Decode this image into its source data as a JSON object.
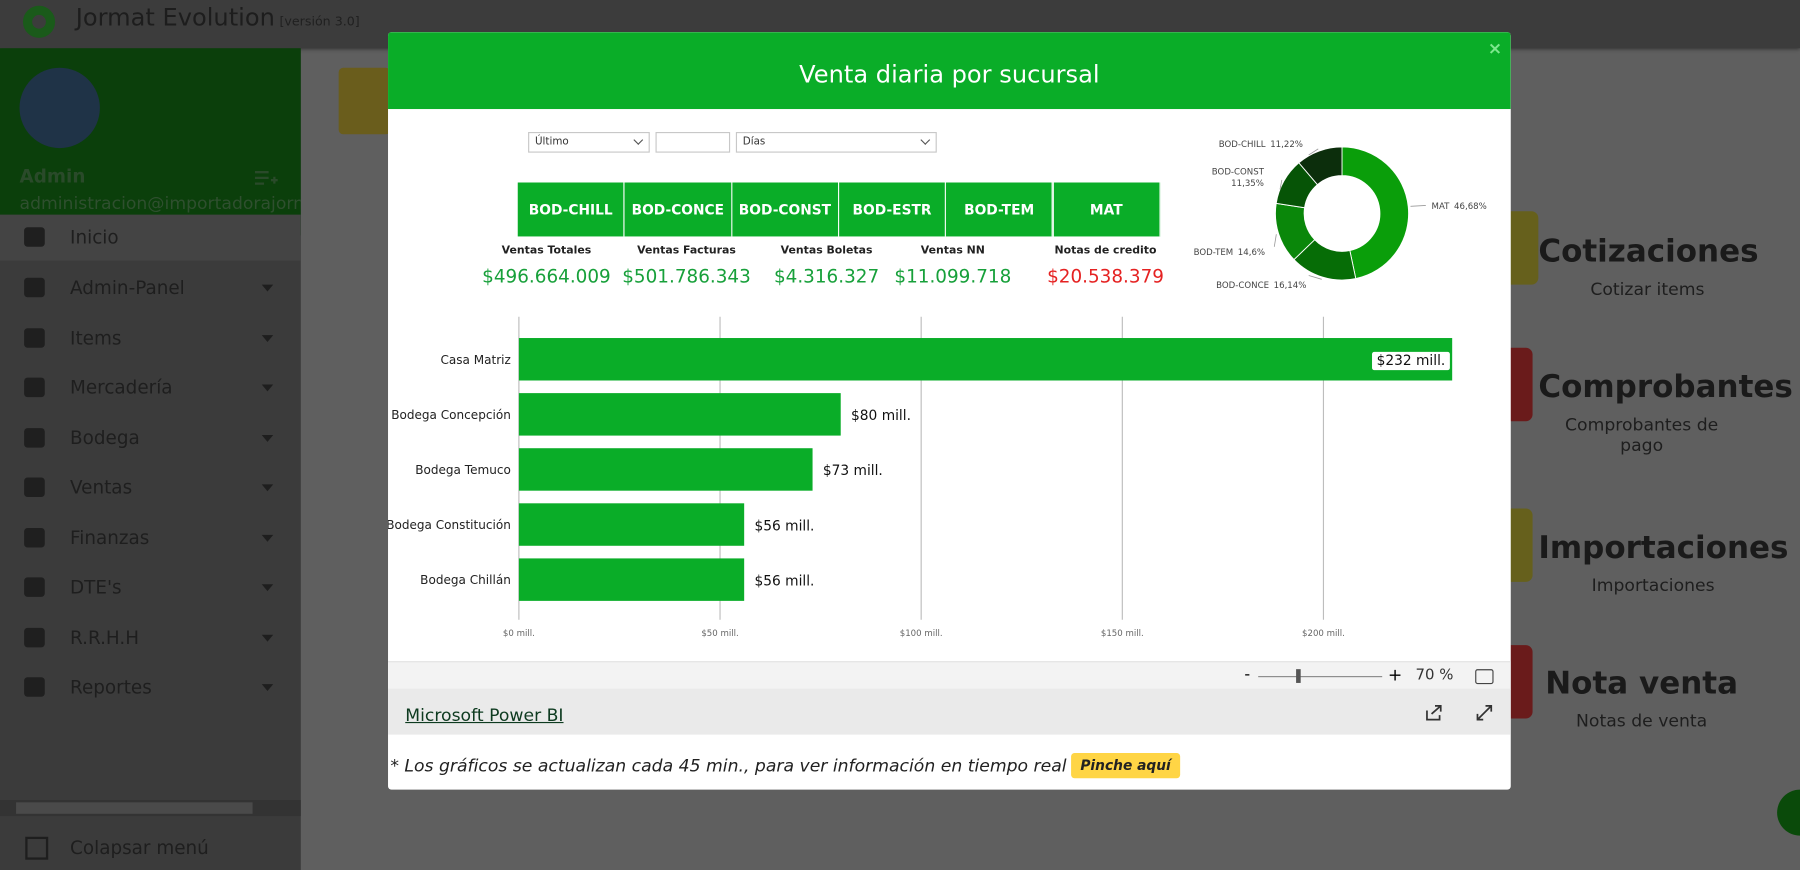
{
  "header": {
    "app_name": "Jormat Evolution",
    "version": "[versión 3.0]"
  },
  "sidebar": {
    "user": "Admin",
    "email": "administracion@importadorajorm",
    "menu": [
      "Inicio",
      "Admin-Panel",
      "Items",
      "Mercadería",
      "Bodega",
      "Ventas",
      "Finanzas",
      "DTE's",
      "R.R.H.H",
      "Reportes"
    ],
    "collapse": "Colapsar menú"
  },
  "cards": [
    {
      "title": "Cotizaciones",
      "subtitle": "Cotizar items"
    },
    {
      "title": "Comprobantes",
      "subtitle": "Comprobantes de pago"
    },
    {
      "title": "Importaciones",
      "subtitle": "Importaciones"
    },
    {
      "title": "Nota venta",
      "subtitle": "Notas de venta"
    }
  ],
  "modal": {
    "title": "Venta diaria por sucursal",
    "close": "×",
    "filters": {
      "period": "Último",
      "unit": "Días"
    },
    "branch_buttons": [
      "BOD-CHILL",
      "BOD-CONCE",
      "BOD-CONST",
      "BOD-ESTR",
      "BOD-TEM",
      "MAT"
    ],
    "kpis": [
      {
        "label": "Ventas Totales",
        "value": "$496.664.009"
      },
      {
        "label": "Ventas Facturas",
        "value": "$501.786.343"
      },
      {
        "label": "Ventas Boletas",
        "value": "$4.316.327"
      },
      {
        "label": "Ventas NN",
        "value": "$11.099.718"
      },
      {
        "label": "Notas de credito",
        "value": "$20.538.379"
      }
    ],
    "zoom": {
      "minus": "-",
      "plus": "+",
      "level": "70 %"
    },
    "powerbi_link": "Microsoft Power BI",
    "note": "* Los gráficos se actualizan cada 45 min., para ver información en tiempo real",
    "note_button": "Pinche aquí"
  },
  "chart_data": [
    {
      "type": "bar",
      "orientation": "horizontal",
      "categories": [
        "Casa Matriz",
        "Bodega Concepción",
        "Bodega Temuco",
        "Bodega Constitución",
        "Bodega Chillán"
      ],
      "values": [
        232,
        80,
        73,
        56,
        56
      ],
      "value_labels": [
        "$232 mill.",
        "$80 mill.",
        "$73 mill.",
        "$56 mill.",
        "$56 mill."
      ],
      "color": "#0aad28",
      "xlim": [
        0,
        240
      ],
      "xticks": [
        {
          "value": 0,
          "label": "$0 mill."
        },
        {
          "value": 50,
          "label": "$50 mill."
        },
        {
          "value": 100,
          "label": "$100 mill."
        },
        {
          "value": 150,
          "label": "$150 mill."
        },
        {
          "value": 200,
          "label": "$200 mill."
        }
      ],
      "grid": true
    },
    {
      "type": "donut",
      "categories": [
        "MAT",
        "BOD-CONCE",
        "BOD-TEM",
        "BOD-CONST",
        "BOD-CHILL"
      ],
      "values": [
        46.68,
        16.14,
        14.6,
        11.35,
        11.22
      ],
      "value_labels": [
        "46,68%",
        "16,14%",
        "14,6%",
        "11,35%",
        "11,22%"
      ],
      "colors": [
        "#0a9e0a",
        "#066d06",
        "#0a870a",
        "#065406",
        "#0c2e0c"
      ]
    }
  ]
}
